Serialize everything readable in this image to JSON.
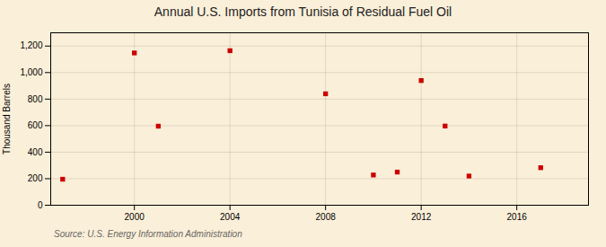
{
  "chart_data": {
    "type": "scatter",
    "title": "Annual U.S. Imports from Tunisia of Residual Fuel Oil",
    "ylabel": "Thousand Barrels",
    "caption": "Source: U.S. Energy Information Administration",
    "x": [
      1997,
      2000,
      2001,
      2004,
      2008,
      2010,
      2011,
      2012,
      2013,
      2014,
      2017
    ],
    "values": [
      196,
      1148,
      596,
      1165,
      840,
      228,
      250,
      940,
      597,
      220,
      283
    ],
    "color": "#cc0000",
    "marker": "square",
    "xlim": [
      1996.5,
      2019
    ],
    "xticks": [
      2000,
      2004,
      2008,
      2012,
      2016
    ],
    "ylim": [
      0,
      1300
    ],
    "yticks": [
      0,
      200,
      400,
      600,
      800,
      {
        "value": 1000,
        "label": "1,000"
      },
      {
        "value": 1200,
        "label": "1,200"
      }
    ],
    "grid": true
  }
}
